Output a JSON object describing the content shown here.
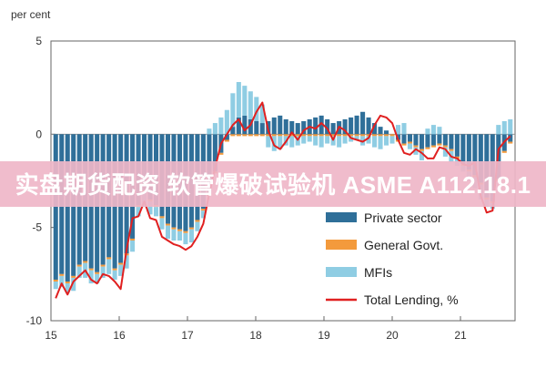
{
  "chart_data": {
    "type": "bar",
    "unit_label": "per cent",
    "y_ticks": [
      "5",
      "0",
      "-5",
      "-10"
    ],
    "x_ticks": [
      "15",
      "16",
      "17",
      "18",
      "19",
      "20",
      "21"
    ],
    "ylim": [
      -10,
      5
    ],
    "grid": false,
    "legend_position": "bottom-right",
    "x_start_year": 15,
    "series": [
      {
        "name": "Private sector",
        "kind": "bar",
        "color": "#2f6f99",
        "values": [
          -7.8,
          -7.5,
          -7.9,
          -7.6,
          -7.0,
          -6.8,
          -7.2,
          -7.4,
          -7.0,
          -6.6,
          -7.2,
          -6.9,
          -6.4,
          -5.6,
          -3.8,
          -3.0,
          -3.5,
          -3.8,
          -4.4,
          -4.8,
          -5.0,
          -5.1,
          -5.2,
          -5.0,
          -4.6,
          -4.0,
          -3.2,
          -2.0,
          -1.0,
          -0.3,
          0.4,
          0.9,
          1.0,
          0.8,
          0.7,
          0.6,
          0.7,
          0.9,
          1.0,
          0.8,
          0.7,
          0.6,
          0.7,
          0.8,
          0.9,
          1.0,
          0.8,
          0.6,
          0.7,
          0.8,
          0.9,
          1.0,
          1.2,
          0.9,
          0.6,
          0.4,
          0.2,
          0.0,
          -0.3,
          -0.5,
          -0.4,
          -0.6,
          -0.8,
          -0.7,
          -0.6,
          -0.5,
          -0.6,
          -0.8,
          -1.2,
          -1.6,
          -1.9,
          -2.2,
          -2.6,
          -3.4,
          -3.6,
          -2.4,
          -0.9,
          -0.4
        ]
      },
      {
        "name": "General Govt.",
        "kind": "bar",
        "color": "#f39a3c",
        "values": [
          -0.1,
          -0.1,
          -0.1,
          -0.1,
          -0.1,
          -0.1,
          -0.1,
          -0.1,
          -0.1,
          -0.1,
          -0.1,
          -0.1,
          -0.1,
          -0.1,
          -0.1,
          -0.1,
          -0.1,
          -0.1,
          -0.1,
          -0.1,
          -0.1,
          -0.1,
          -0.1,
          -0.1,
          -0.1,
          -0.1,
          -0.1,
          -0.1,
          -0.1,
          -0.1,
          -0.1,
          -0.1,
          -0.1,
          -0.1,
          -0.1,
          -0.1,
          -0.1,
          -0.1,
          -0.1,
          -0.1,
          -0.1,
          -0.1,
          -0.1,
          -0.1,
          -0.1,
          -0.1,
          -0.1,
          -0.1,
          -0.1,
          -0.1,
          -0.1,
          -0.1,
          -0.1,
          -0.1,
          -0.1,
          -0.1,
          -0.1,
          -0.1,
          -0.1,
          -0.1,
          -0.1,
          -0.1,
          -0.1,
          -0.1,
          -0.1,
          -0.1,
          -0.1,
          -0.1,
          -0.1,
          -0.1,
          -0.1,
          -0.1,
          -0.1,
          -0.1,
          -0.1,
          -0.1,
          -0.1,
          -0.1
        ]
      },
      {
        "name": "MFIs",
        "kind": "bar",
        "color": "#8fcde3",
        "values": [
          -0.4,
          -0.6,
          -0.5,
          -0.7,
          -0.6,
          -0.8,
          -0.7,
          -0.5,
          -0.6,
          -0.8,
          -0.5,
          -0.6,
          -0.7,
          -0.6,
          -0.5,
          -0.8,
          -0.7,
          -0.5,
          -0.6,
          -0.7,
          -0.6,
          -0.5,
          -0.6,
          -0.7,
          -0.5,
          -0.4,
          0.3,
          0.6,
          0.9,
          1.3,
          1.8,
          1.9,
          1.6,
          1.5,
          1.3,
          1.0,
          -0.6,
          -0.8,
          -0.7,
          -0.5,
          -0.6,
          -0.5,
          -0.4,
          -0.3,
          -0.5,
          -0.6,
          -0.4,
          -0.5,
          -0.6,
          -0.4,
          -0.3,
          -0.2,
          -0.5,
          -0.4,
          -0.6,
          -0.7,
          -0.5,
          -0.4,
          0.5,
          0.6,
          -0.3,
          -0.4,
          -0.5,
          0.3,
          0.5,
          0.4,
          -0.5,
          -0.6,
          -0.4,
          -0.3,
          -0.5,
          -0.6,
          -0.8,
          -0.4,
          -0.3,
          0.5,
          0.7,
          0.8
        ]
      },
      {
        "name": "Total Lending, %",
        "kind": "line",
        "color": "#e02020",
        "values": [
          -8.8,
          -8.0,
          -8.6,
          -7.9,
          -7.6,
          -7.3,
          -7.8,
          -8.0,
          -7.5,
          -7.6,
          -7.9,
          -8.3,
          -6.2,
          -4.5,
          -4.4,
          -3.6,
          -4.5,
          -4.6,
          -5.5,
          -5.7,
          -5.9,
          -6.0,
          -6.2,
          -6.0,
          -5.5,
          -4.8,
          -3.2,
          -1.8,
          -0.5,
          0.0,
          0.5,
          0.8,
          0.2,
          0.5,
          1.2,
          1.7,
          0.2,
          -0.6,
          -0.8,
          -0.4,
          0.1,
          -0.3,
          0.2,
          0.4,
          0.3,
          0.6,
          0.3,
          -0.3,
          0.4,
          0.2,
          -0.2,
          -0.3,
          -0.4,
          -0.2,
          0.5,
          1.0,
          0.9,
          0.6,
          -0.3,
          -1.0,
          -1.1,
          -0.8,
          -1.0,
          -1.3,
          -1.3,
          -0.7,
          -0.8,
          -1.2,
          -1.3,
          -1.6,
          -1.7,
          -1.5,
          -3.3,
          -4.2,
          -4.1,
          -0.8,
          -0.4,
          -0.1
        ]
      }
    ]
  },
  "banner": {
    "text": "实盘期货配资 软管爆破试验机 ASME A112.18.1"
  }
}
